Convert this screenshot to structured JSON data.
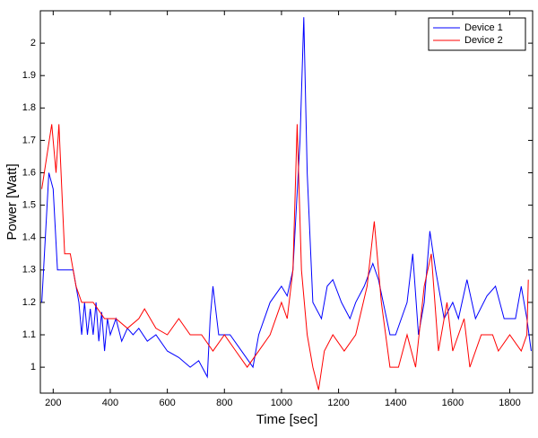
{
  "chart_data": {
    "type": "line",
    "x_label": "Time [sec]",
    "y_label": "Power [Watt]",
    "xlim": [
      155,
      1880
    ],
    "ylim": [
      0.92,
      2.1
    ],
    "xticks": [
      200,
      400,
      600,
      800,
      1000,
      1200,
      1400,
      1600,
      1800
    ],
    "yticks": [
      1,
      1.1,
      1.2,
      1.3,
      1.4,
      1.5,
      1.6,
      1.7,
      1.8,
      1.9,
      2
    ],
    "grid": false,
    "legend": "upper-right",
    "series": [
      {
        "name": "Device 1",
        "color": "#0000ff",
        "x": [
          160,
          185,
          200,
          215,
          240,
          270,
          290,
          300,
          310,
          320,
          330,
          340,
          350,
          360,
          370,
          380,
          390,
          400,
          420,
          440,
          460,
          480,
          500,
          530,
          560,
          600,
          640,
          680,
          710,
          740,
          750,
          760,
          780,
          820,
          860,
          900,
          920,
          960,
          1000,
          1020,
          1040,
          1065,
          1078,
          1090,
          1110,
          1140,
          1160,
          1180,
          1210,
          1240,
          1260,
          1290,
          1320,
          1340,
          1380,
          1400,
          1440,
          1460,
          1480,
          1500,
          1520,
          1540,
          1570,
          1600,
          1620,
          1650,
          1680,
          1720,
          1750,
          1780,
          1820,
          1840,
          1860,
          1875
        ],
        "values": [
          1.2,
          1.6,
          1.55,
          1.3,
          1.3,
          1.3,
          1.2,
          1.1,
          1.2,
          1.1,
          1.18,
          1.1,
          1.2,
          1.08,
          1.17,
          1.05,
          1.15,
          1.1,
          1.15,
          1.08,
          1.12,
          1.1,
          1.12,
          1.08,
          1.1,
          1.05,
          1.03,
          1.0,
          1.02,
          0.97,
          1.15,
          1.25,
          1.1,
          1.1,
          1.05,
          1.0,
          1.1,
          1.2,
          1.25,
          1.22,
          1.3,
          1.7,
          2.08,
          1.6,
          1.2,
          1.15,
          1.25,
          1.27,
          1.2,
          1.15,
          1.2,
          1.25,
          1.32,
          1.27,
          1.1,
          1.1,
          1.2,
          1.35,
          1.1,
          1.2,
          1.42,
          1.3,
          1.15,
          1.2,
          1.15,
          1.27,
          1.15,
          1.22,
          1.25,
          1.15,
          1.15,
          1.25,
          1.15,
          1.05
        ]
      },
      {
        "name": "Device 2",
        "color": "#ff0000",
        "x": [
          160,
          195,
          210,
          220,
          240,
          260,
          280,
          300,
          340,
          380,
          420,
          460,
          500,
          520,
          560,
          600,
          640,
          680,
          720,
          760,
          800,
          840,
          880,
          920,
          960,
          1000,
          1020,
          1040,
          1055,
          1070,
          1090,
          1110,
          1130,
          1150,
          1180,
          1220,
          1260,
          1300,
          1325,
          1350,
          1380,
          1410,
          1440,
          1470,
          1500,
          1525,
          1550,
          1580,
          1600,
          1640,
          1660,
          1700,
          1740,
          1760,
          1800,
          1840,
          1860,
          1865
        ],
        "values": [
          1.55,
          1.75,
          1.6,
          1.75,
          1.35,
          1.35,
          1.25,
          1.2,
          1.2,
          1.15,
          1.15,
          1.12,
          1.15,
          1.18,
          1.12,
          1.1,
          1.15,
          1.1,
          1.1,
          1.05,
          1.1,
          1.05,
          1.0,
          1.05,
          1.1,
          1.2,
          1.15,
          1.3,
          1.75,
          1.3,
          1.1,
          1.0,
          0.93,
          1.05,
          1.1,
          1.05,
          1.1,
          1.25,
          1.45,
          1.2,
          1.0,
          1.0,
          1.1,
          1.0,
          1.25,
          1.35,
          1.05,
          1.2,
          1.05,
          1.15,
          1.0,
          1.1,
          1.1,
          1.05,
          1.1,
          1.05,
          1.1,
          1.27
        ]
      }
    ]
  }
}
